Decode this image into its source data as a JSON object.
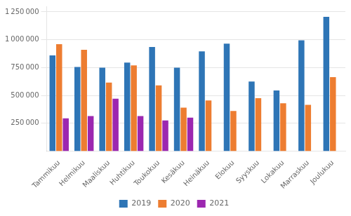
{
  "chart_data": {
    "type": "bar",
    "categories": [
      "Tammikuu",
      "Helmikuu",
      "Maaliskuu",
      "Huhtikuu",
      "Toukokuu",
      "Kesäkuu",
      "Heinäkuu",
      "Elokuu",
      "Syyskuu",
      "Lokakuu",
      "Marraskuu",
      "Joulukuu"
    ],
    "series": [
      {
        "name": "2019",
        "color": "#2e75b6",
        "values": [
          860000,
          755000,
          750000,
          795000,
          935000,
          750000,
          895000,
          965000,
          625000,
          545000,
          995000,
          1205000
        ]
      },
      {
        "name": "2020",
        "color": "#ed7d31",
        "values": [
          960000,
          910000,
          615000,
          770000,
          590000,
          390000,
          455000,
          360000,
          475000,
          430000,
          415000,
          665000
        ]
      },
      {
        "name": "2021",
        "color": "#9c27b0",
        "values": [
          295000,
          315000,
          470000,
          315000,
          275000,
          300000,
          null,
          null,
          null,
          null,
          null,
          null
        ]
      }
    ],
    "ylim": [
      0,
      1300000
    ],
    "yticks": [
      {
        "value": 250000,
        "label": "250 000"
      },
      {
        "value": 500000,
        "label": "500 000"
      },
      {
        "value": 750000,
        "label": "750 000"
      },
      {
        "value": 1000000,
        "label": "1 000 000"
      },
      {
        "value": 1250000,
        "label": "1 250 000"
      }
    ],
    "grid": true,
    "legend": "bottom"
  }
}
